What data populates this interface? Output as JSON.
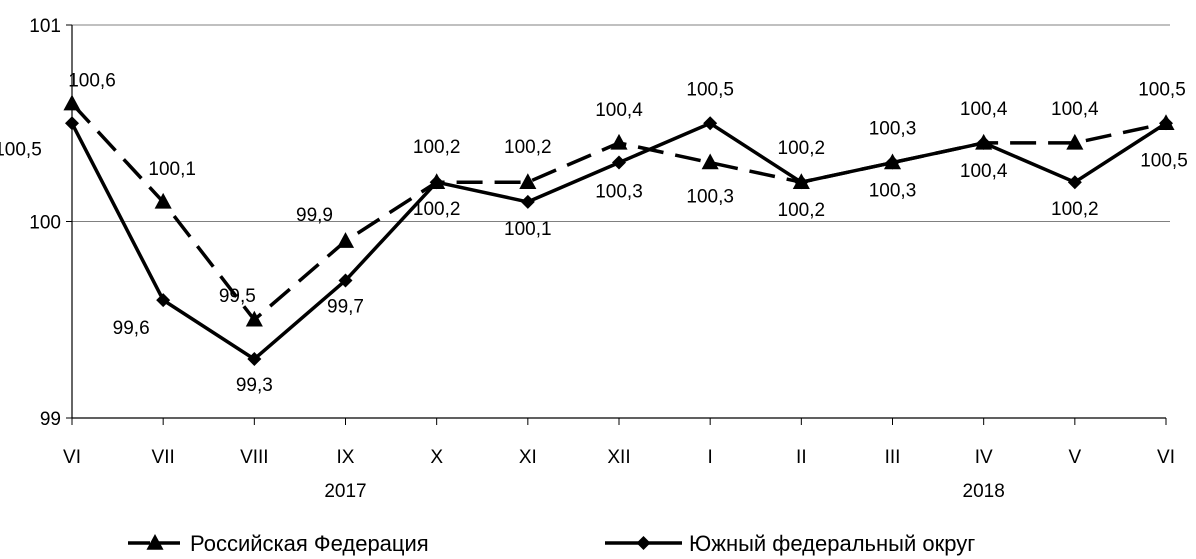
{
  "chart_data": {
    "type": "line",
    "categories": [
      "VI",
      "VII",
      "VIII",
      "IX",
      "X",
      "XI",
      "XII",
      "I",
      "II",
      "III",
      "IV",
      "V",
      "VI"
    ],
    "year_labels": [
      {
        "text": "2017",
        "category_index": 3
      },
      {
        "text": "2018",
        "category_index": 10
      }
    ],
    "ylim": [
      99,
      101
    ],
    "yticks": [
      99,
      100,
      101
    ],
    "ytick_labels": [
      "99",
      "100",
      "101"
    ],
    "grid": true,
    "legend_placement": "bottom",
    "series": [
      {
        "name": "Российская Федерация",
        "style": "dashed",
        "marker": "triangle",
        "color": "#000000",
        "values": [
          100.6,
          100.1,
          99.5,
          99.9,
          100.2,
          100.2,
          100.4,
          100.3,
          100.2,
          100.3,
          100.4,
          100.4,
          100.5
        ],
        "labels": [
          "100,6",
          "100,1",
          "99,5",
          "99,9",
          "100,2",
          "100,2",
          "100,4",
          "100,3",
          "100,2",
          "100,3",
          "100,4",
          "100,4",
          "100,5"
        ]
      },
      {
        "name": "Южный федеральный округ",
        "style": "solid",
        "marker": "diamond",
        "color": "#000000",
        "values": [
          100.5,
          99.6,
          99.3,
          99.7,
          100.2,
          100.1,
          100.3,
          100.5,
          100.2,
          100.3,
          100.4,
          100.2,
          100.5
        ],
        "labels": [
          "100,5",
          "99,6",
          "99,3",
          "99,7",
          "100,2",
          "100,1",
          "100,3",
          "100,5",
          "100,2",
          "100,3",
          "100,4",
          "100,2",
          "100,5"
        ]
      }
    ]
  }
}
